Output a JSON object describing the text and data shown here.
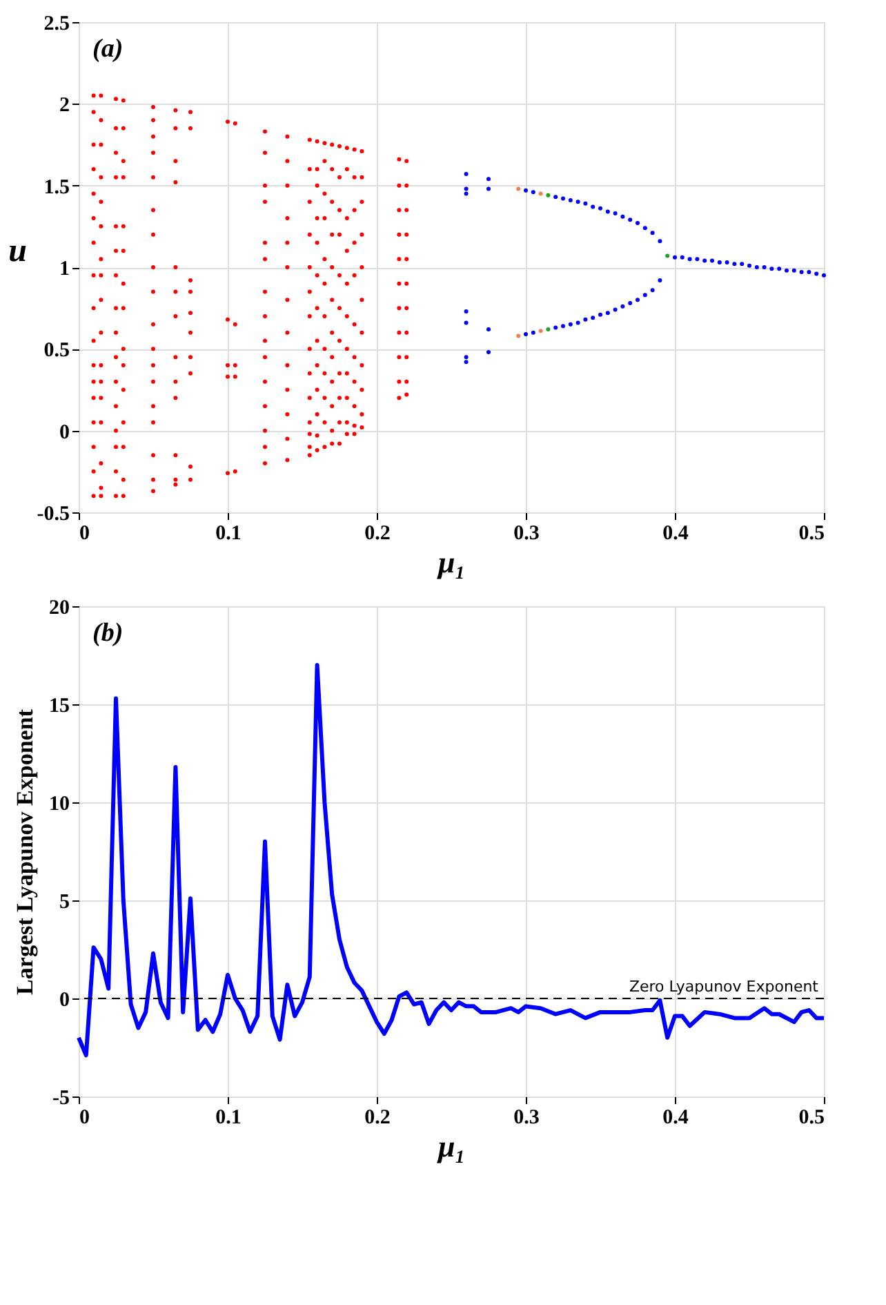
{
  "chart_data": [
    {
      "type": "scatter",
      "xlabel": "μ₁",
      "ylabel": "u",
      "annotations": [
        "(a)"
      ],
      "xlim": [
        0,
        0.5
      ],
      "xticks": [
        0,
        0.1,
        0.2,
        0.3,
        0.4,
        0.5
      ],
      "ylim": [
        -0.5,
        2.5
      ],
      "yticks": [
        -0.5,
        0,
        0.5,
        1,
        1.5,
        2,
        2.5
      ],
      "grid": true,
      "marker": "circle",
      "series": [
        {
          "color": "#ff0000",
          "x": [
            0.01,
            0.01,
            0.01,
            0.01,
            0.01,
            0.01,
            0.01,
            0.01,
            0.01,
            0.01,
            0.01,
            0.01,
            0.01,
            0.01,
            0.01,
            0.01,
            0.01,
            0.015,
            0.015,
            0.015,
            0.015,
            0.015,
            0.015,
            0.015,
            0.015,
            0.015,
            0.015,
            0.015,
            0.015,
            0.015,
            0.015,
            0.015,
            0.015,
            0.015,
            0.025,
            0.025,
            0.025,
            0.025,
            0.025,
            0.025,
            0.025,
            0.025,
            0.025,
            0.025,
            0.025,
            0.025,
            0.025,
            0.025,
            0.025,
            0.025,
            0.03,
            0.03,
            0.03,
            0.03,
            0.03,
            0.03,
            0.03,
            0.03,
            0.03,
            0.03,
            0.03,
            0.03,
            0.03,
            0.03,
            0.03,
            0.05,
            0.05,
            0.05,
            0.05,
            0.05,
            0.05,
            0.05,
            0.05,
            0.05,
            0.05,
            0.05,
            0.05,
            0.05,
            0.05,
            0.05,
            0.05,
            0.05,
            0.05,
            0.065,
            0.065,
            0.065,
            0.065,
            0.065,
            0.065,
            0.065,
            0.065,
            0.065,
            0.065,
            0.065,
            0.065,
            0.065,
            0.075,
            0.075,
            0.075,
            0.075,
            0.075,
            0.075,
            0.075,
            0.075,
            0.075,
            0.075,
            0.1,
            0.1,
            0.1,
            0.1,
            0.1,
            0.105,
            0.105,
            0.105,
            0.105,
            0.105,
            0.125,
            0.125,
            0.125,
            0.125,
            0.125,
            0.125,
            0.125,
            0.125,
            0.125,
            0.125,
            0.125,
            0.125,
            0.125,
            0.125,
            0.125,
            0.14,
            0.14,
            0.14,
            0.14,
            0.14,
            0.14,
            0.14,
            0.14,
            0.14,
            0.14,
            0.14,
            0.14,
            0.14,
            0.155,
            0.155,
            0.155,
            0.155,
            0.155,
            0.155,
            0.155,
            0.155,
            0.155,
            0.155,
            0.155,
            0.155,
            0.155,
            0.155,
            0.16,
            0.16,
            0.16,
            0.16,
            0.16,
            0.16,
            0.16,
            0.16,
            0.16,
            0.16,
            0.16,
            0.16,
            0.16,
            0.165,
            0.165,
            0.165,
            0.165,
            0.165,
            0.165,
            0.165,
            0.165,
            0.165,
            0.165,
            0.165,
            0.165,
            0.17,
            0.17,
            0.17,
            0.17,
            0.17,
            0.17,
            0.17,
            0.17,
            0.17,
            0.17,
            0.17,
            0.17,
            0.175,
            0.175,
            0.175,
            0.175,
            0.175,
            0.175,
            0.175,
            0.175,
            0.175,
            0.175,
            0.175,
            0.18,
            0.18,
            0.18,
            0.18,
            0.18,
            0.18,
            0.18,
            0.18,
            0.18,
            0.18,
            0.18,
            0.185,
            0.185,
            0.185,
            0.185,
            0.185,
            0.185,
            0.185,
            0.185,
            0.185,
            0.185,
            0.185,
            0.19,
            0.19,
            0.19,
            0.19,
            0.19,
            0.19,
            0.19,
            0.19,
            0.19,
            0.19,
            0.19,
            0.215,
            0.215,
            0.215,
            0.215,
            0.215,
            0.215,
            0.215,
            0.215,
            0.215,
            0.215,
            0.215,
            0.22,
            0.22,
            0.22,
            0.22,
            0.22,
            0.22,
            0.22,
            0.22,
            0.22,
            0.22,
            0.22
          ],
          "values": [
            2.05,
            1.95,
            1.75,
            1.6,
            1.45,
            1.3,
            1.15,
            0.95,
            0.75,
            0.55,
            0.4,
            0.3,
            0.2,
            0.05,
            -0.1,
            -0.25,
            -0.4,
            2.05,
            1.9,
            1.75,
            1.55,
            1.4,
            1.25,
            1.05,
            0.95,
            0.8,
            0.6,
            0.4,
            0.3,
            0.2,
            0.05,
            -0.2,
            -0.35,
            -0.4,
            2.03,
            1.85,
            1.7,
            1.55,
            1.25,
            1.1,
            0.95,
            0.75,
            0.6,
            0.45,
            0.3,
            0.15,
            0.0,
            -0.1,
            -0.25,
            -0.4,
            2.02,
            1.85,
            1.65,
            1.55,
            1.25,
            1.1,
            0.9,
            0.75,
            0.5,
            0.4,
            0.25,
            0.05,
            -0.1,
            -0.3,
            -0.4,
            1.98,
            1.9,
            1.8,
            1.7,
            1.55,
            1.35,
            1.2,
            1.0,
            0.85,
            0.65,
            0.5,
            0.4,
            0.3,
            0.15,
            0.05,
            -0.15,
            -0.3,
            -0.37,
            1.96,
            1.85,
            1.65,
            1.52,
            1.0,
            0.85,
            0.7,
            0.45,
            0.3,
            0.2,
            -0.15,
            -0.3,
            -0.33,
            1.95,
            1.85,
            0.92,
            0.85,
            0.72,
            0.6,
            0.45,
            0.35,
            -0.22,
            -0.3,
            1.89,
            0.68,
            0.4,
            0.33,
            -0.26,
            1.88,
            0.65,
            0.4,
            0.33,
            -0.25,
            1.83,
            1.7,
            1.5,
            1.4,
            1.15,
            1.05,
            0.85,
            0.7,
            0.55,
            0.45,
            0.3,
            0.15,
            0.0,
            -0.1,
            -0.2,
            1.8,
            1.65,
            1.5,
            1.3,
            1.15,
            1.0,
            0.8,
            0.6,
            0.4,
            0.25,
            0.1,
            -0.05,
            -0.18,
            1.78,
            1.6,
            1.4,
            1.2,
            1.0,
            0.85,
            0.7,
            0.5,
            0.35,
            0.2,
            0.05,
            -0.02,
            -0.1,
            -0.15,
            1.77,
            1.6,
            1.5,
            1.3,
            1.15,
            0.95,
            0.75,
            0.55,
            0.4,
            0.25,
            0.1,
            -0.03,
            -0.12,
            1.76,
            1.65,
            1.45,
            1.3,
            1.05,
            0.9,
            0.7,
            0.5,
            0.35,
            0.2,
            0.05,
            -0.1,
            1.75,
            1.6,
            1.4,
            1.2,
            1.0,
            0.8,
            0.6,
            0.45,
            0.3,
            0.15,
            0.0,
            -0.08,
            1.74,
            1.55,
            1.35,
            1.2,
            0.95,
            0.75,
            0.55,
            0.35,
            0.2,
            0.05,
            -0.08,
            1.73,
            1.6,
            1.3,
            1.1,
            0.9,
            0.7,
            0.5,
            0.35,
            0.2,
            0.05,
            -0.02,
            1.72,
            1.55,
            1.35,
            1.15,
            0.95,
            0.65,
            0.45,
            0.3,
            0.15,
            0.03,
            -0.02,
            1.71,
            1.55,
            1.4,
            1.2,
            1.0,
            0.8,
            0.6,
            0.4,
            0.25,
            0.1,
            0.02,
            1.66,
            1.5,
            1.35,
            1.2,
            1.05,
            0.9,
            0.75,
            0.6,
            0.45,
            0.3,
            0.2,
            1.65,
            1.5,
            1.35,
            1.2,
            1.05,
            0.9,
            0.75,
            0.6,
            0.45,
            0.3,
            0.22
          ]
        },
        {
          "color": "#0000ff",
          "x": [
            0.26,
            0.26,
            0.26,
            0.26,
            0.26,
            0.26,
            0.26,
            0.275,
            0.275,
            0.275,
            0.275,
            0.3,
            0.305,
            0.32,
            0.325,
            0.33,
            0.335,
            0.34,
            0.345,
            0.35,
            0.355,
            0.36,
            0.365,
            0.37,
            0.375,
            0.38,
            0.385,
            0.39,
            0.3,
            0.305,
            0.32,
            0.325,
            0.33,
            0.335,
            0.34,
            0.345,
            0.35,
            0.355,
            0.36,
            0.365,
            0.37,
            0.375,
            0.38,
            0.385,
            0.39,
            0.4,
            0.405,
            0.41,
            0.415,
            0.42,
            0.425,
            0.43,
            0.435,
            0.44,
            0.445,
            0.45,
            0.455,
            0.46,
            0.465,
            0.47,
            0.475,
            0.48,
            0.485,
            0.49,
            0.495,
            0.5
          ],
          "values": [
            1.57,
            1.48,
            1.45,
            0.73,
            0.66,
            0.45,
            0.42,
            1.54,
            1.48,
            0.62,
            0.48,
            1.47,
            1.46,
            1.43,
            1.42,
            1.41,
            1.4,
            1.39,
            1.37,
            1.36,
            1.34,
            1.33,
            1.31,
            1.29,
            1.27,
            1.24,
            1.21,
            1.16,
            0.59,
            0.6,
            0.63,
            0.64,
            0.65,
            0.66,
            0.68,
            0.69,
            0.71,
            0.72,
            0.74,
            0.76,
            0.78,
            0.8,
            0.83,
            0.86,
            0.92,
            1.06,
            1.06,
            1.05,
            1.05,
            1.04,
            1.04,
            1.03,
            1.03,
            1.02,
            1.02,
            1.01,
            1.0,
            1.0,
            0.99,
            0.99,
            0.98,
            0.98,
            0.97,
            0.97,
            0.96,
            0.95
          ]
        },
        {
          "color": "#f08050",
          "x": [
            0.295,
            0.31,
            0.295,
            0.31
          ],
          "values": [
            1.48,
            1.45,
            0.58,
            0.61
          ]
        },
        {
          "color": "#20a020",
          "x": [
            0.315,
            0.315,
            0.395
          ],
          "values": [
            1.44,
            0.62,
            1.07
          ]
        }
      ]
    },
    {
      "type": "line",
      "xlabel": "μ₁",
      "ylabel": "Largest Lyapunov Exponent",
      "annotations": [
        "(b)"
      ],
      "xlim": [
        0,
        0.5
      ],
      "xticks": [
        0,
        0.1,
        0.2,
        0.3,
        0.4,
        0.5
      ],
      "ylim": [
        -5,
        20
      ],
      "yticks": [
        -5,
        0,
        5,
        10,
        15,
        20
      ],
      "grid": true,
      "line_style": "solid",
      "ref_lines": [
        {
          "axis": "y",
          "value": 0,
          "label": "Zero Lyapunov Exponent",
          "color": "#000000",
          "line_style": "dashed"
        }
      ],
      "series": [
        {
          "color": "#0000ff",
          "x": [
            0,
            0.005,
            0.01,
            0.015,
            0.02,
            0.025,
            0.03,
            0.035,
            0.04,
            0.045,
            0.05,
            0.055,
            0.06,
            0.065,
            0.07,
            0.075,
            0.08,
            0.085,
            0.09,
            0.095,
            0.1,
            0.105,
            0.11,
            0.115,
            0.12,
            0.125,
            0.13,
            0.135,
            0.14,
            0.145,
            0.15,
            0.155,
            0.16,
            0.165,
            0.17,
            0.175,
            0.18,
            0.185,
            0.19,
            0.195,
            0.2,
            0.205,
            0.21,
            0.215,
            0.22,
            0.225,
            0.23,
            0.235,
            0.24,
            0.245,
            0.25,
            0.255,
            0.26,
            0.265,
            0.27,
            0.28,
            0.29,
            0.295,
            0.3,
            0.31,
            0.32,
            0.33,
            0.34,
            0.35,
            0.36,
            0.37,
            0.38,
            0.385,
            0.39,
            0.395,
            0.4,
            0.405,
            0.41,
            0.42,
            0.43,
            0.44,
            0.45,
            0.46,
            0.465,
            0.47,
            0.48,
            0.485,
            0.49,
            0.495,
            0.5
          ],
          "values": [
            -2,
            -2.9,
            2.6,
            2.0,
            0.5,
            15.3,
            5,
            -0.3,
            -1.5,
            -0.7,
            2.3,
            -0.2,
            -1.0,
            11.8,
            -0.7,
            5.1,
            -1.6,
            -1.1,
            -1.7,
            -0.8,
            1.2,
            0.0,
            -0.6,
            -1.7,
            -0.9,
            8.0,
            -0.9,
            -2.1,
            0.7,
            -0.9,
            -0.2,
            1.1,
            17.0,
            10,
            5.3,
            3,
            1.6,
            0.8,
            0.4,
            -0.4,
            -1.2,
            -1.8,
            -1.1,
            0.1,
            0.3,
            -0.3,
            -0.2,
            -1.3,
            -0.6,
            -0.2,
            -0.6,
            -0.2,
            -0.4,
            -0.4,
            -0.7,
            -0.7,
            -0.5,
            -0.7,
            -0.4,
            -0.5,
            -0.8,
            -0.6,
            -1.0,
            -0.7,
            -0.7,
            -0.7,
            -0.6,
            -0.6,
            -0.1,
            -2.0,
            -0.9,
            -0.9,
            -1.4,
            -0.7,
            -0.8,
            -1.0,
            -1.0,
            -0.5,
            -0.8,
            -0.8,
            -1.2,
            -0.7,
            -0.6,
            -1.0,
            -1.0
          ]
        }
      ]
    }
  ]
}
